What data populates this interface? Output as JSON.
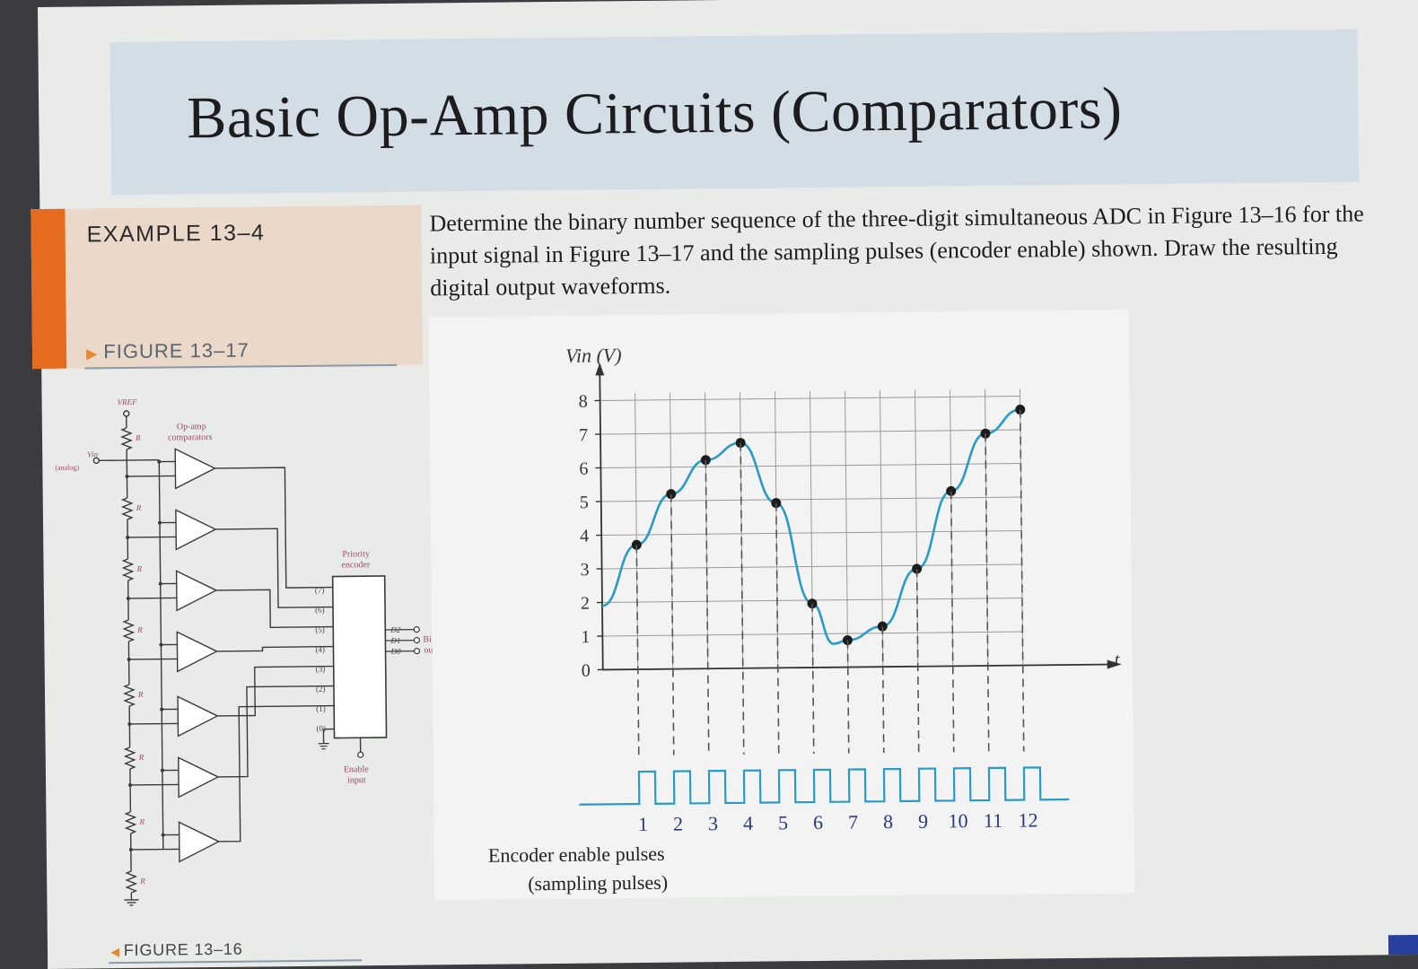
{
  "slide": {
    "title": "Basic Op-Amp Circuits (Comparators)",
    "example_label": "EXAMPLE 13–4",
    "problem": "Determine the binary number sequence of the three-digit simultaneous ADC in Figure 13–16 for the input signal in Figure 13–17 and the sampling pulses (encoder enable) shown. Draw the resulting digital output waveforms.",
    "figure_17_label": "FIGURE 13–17",
    "figure_16_label": "FIGURE 13–16"
  },
  "circuit": {
    "vref_label": "VREF",
    "vin_label": "Vin",
    "analog_label": "(analog)",
    "resistor_label": "R",
    "opamp_label_1": "Op-amp",
    "opamp_label_2": "comparators",
    "encoder_label_1": "Priority",
    "encoder_label_2": "encoder",
    "input_labels": [
      "(7)",
      "(6)",
      "(5)",
      "(4)",
      "(3)",
      "(2)",
      "(1)",
      "(0)"
    ],
    "output_labels": [
      "D2",
      "D1",
      "D0"
    ],
    "binary_output_1": "Binary",
    "binary_output_2": "output",
    "enable_label_1": "Enable",
    "enable_label_2": "input",
    "colors": {
      "wire": "#3a3a3a",
      "label": "#9a4a60",
      "encoder_fill": "#ffffff"
    }
  },
  "chart_data": {
    "type": "line",
    "ylabel": "Vin (V)",
    "xlabel": "t",
    "y_ticks": [
      0,
      1,
      2,
      3,
      4,
      5,
      6,
      7,
      8
    ],
    "ylim": [
      0,
      8
    ],
    "sample_index": [
      1,
      2,
      3,
      4,
      5,
      6,
      7,
      8,
      9,
      10,
      11,
      12
    ],
    "sample_values": [
      3.7,
      5.2,
      6.2,
      6.7,
      4.9,
      1.9,
      0.8,
      1.2,
      2.9,
      5.2,
      6.9,
      7.6
    ],
    "curve_start_value": 1.9,
    "curve_min_value": 0.7,
    "grid": true,
    "pulse_label_1": "Encoder enable pulses",
    "pulse_label_2": "(sampling pulses)",
    "colors": {
      "curve": "#2a9bc4",
      "points": "#1c1c1c",
      "grid": "#9a9a9a",
      "axis": "#333333"
    }
  }
}
